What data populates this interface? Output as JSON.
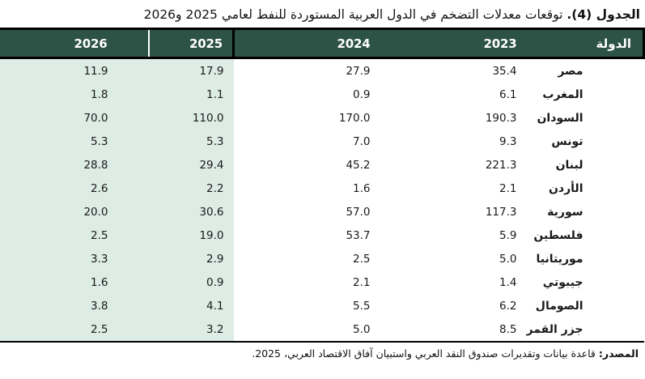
{
  "title": {
    "label": "الجدول (4).",
    "text": "توقعات معدلات التضخم في الدول العربية المستوردة للنفط لعامي 2025 و2026"
  },
  "table": {
    "headers": {
      "country": "الدولة",
      "y2023": "2023",
      "y2024": "2024",
      "y2025": "2025",
      "y2026": "2026"
    },
    "rows": [
      {
        "country": "مصر",
        "y2023": "35.4",
        "y2024": "27.9",
        "y2025": "17.9",
        "y2026": "11.9"
      },
      {
        "country": "المغرب",
        "y2023": "6.1",
        "y2024": "0.9",
        "y2025": "1.1",
        "y2026": "1.8"
      },
      {
        "country": "السودان",
        "y2023": "190.3",
        "y2024": "170.0",
        "y2025": "110.0",
        "y2026": "70.0"
      },
      {
        "country": "تونس",
        "y2023": "9.3",
        "y2024": "7.0",
        "y2025": "5.3",
        "y2026": "5.3"
      },
      {
        "country": "لبنان",
        "y2023": "221.3",
        "y2024": "45.2",
        "y2025": "29.4",
        "y2026": "28.8"
      },
      {
        "country": "الأردن",
        "y2023": "2.1",
        "y2024": "1.6",
        "y2025": "2.2",
        "y2026": "2.6"
      },
      {
        "country": "سورية",
        "y2023": "117.3",
        "y2024": "57.0",
        "y2025": "30.6",
        "y2026": "20.0"
      },
      {
        "country": "فلسطين",
        "y2023": "5.9",
        "y2024": "53.7",
        "y2025": "19.0",
        "y2026": "2.5"
      },
      {
        "country": "موريتانيا",
        "y2023": "5.0",
        "y2024": "2.5",
        "y2025": "2.9",
        "y2026": "3.3"
      },
      {
        "country": "جيبوتي",
        "y2023": "1.4",
        "y2024": "2.1",
        "y2025": "0.9",
        "y2026": "1.6"
      },
      {
        "country": "الصومال",
        "y2023": "6.2",
        "y2024": "5.5",
        "y2025": "4.1",
        "y2026": "3.8"
      },
      {
        "country": "جزر القمر",
        "y2023": "8.5",
        "y2024": "5.0",
        "y2025": "3.2",
        "y2026": "2.5"
      }
    ]
  },
  "source": {
    "label": "المصدر:",
    "text": "قاعدة بيانات وتقديرات صندوق النقد العربي واستبيان آفاق الاقتصاد العربي، 2025."
  },
  "colors": {
    "header_bg": "#2d5246",
    "forecast_highlight_bg": "#ddece5",
    "border": "#000000",
    "header_text": "#ffffff",
    "body_text": "#1a1a1a"
  }
}
